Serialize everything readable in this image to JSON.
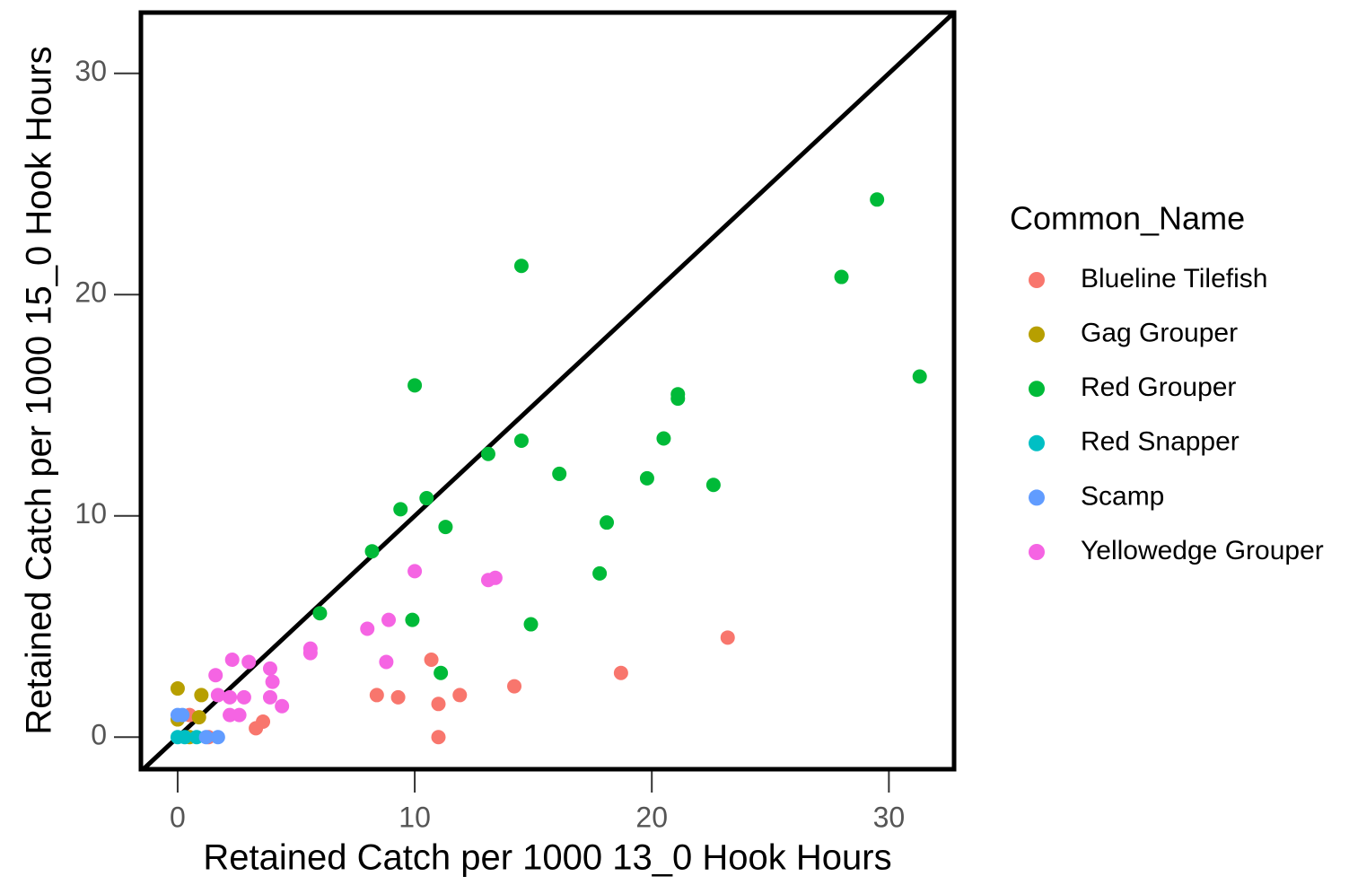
{
  "chart_data": {
    "type": "scatter",
    "x_label": "Retained Catch per 1000 13_0 Hook Hours",
    "y_label": "Retained Catch per 1000 15_0 Hook Hours",
    "legend_title": "Common_Name",
    "legend_position": "right",
    "identity_line": true,
    "xlim": [
      -1.55,
      32.75
    ],
    "ylim": [
      -1.45,
      32.75
    ],
    "xticks": [
      0,
      10,
      20,
      30
    ],
    "yticks": [
      0,
      10,
      20,
      30
    ],
    "series": [
      {
        "name": "Blueline Tilefish",
        "color": "#F8766D",
        "x": [
          23.2,
          18.7,
          10.7,
          14.2,
          11.9,
          8.4,
          9.3,
          11.0,
          3.6,
          3.3,
          11.0,
          0.5,
          1.3
        ],
        "y": [
          4.5,
          2.9,
          3.5,
          2.3,
          1.9,
          1.9,
          1.8,
          1.5,
          0.7,
          0.4,
          0.0,
          1.0,
          0.0
        ]
      },
      {
        "name": "Gag Grouper",
        "color": "#B79F00",
        "x": [
          0.0,
          1.0,
          0.0,
          0.9,
          0.5
        ],
        "y": [
          2.2,
          1.9,
          0.8,
          0.9,
          0.0
        ]
      },
      {
        "name": "Red Grouper",
        "color": "#00BA38",
        "x": [
          29.5,
          14.5,
          28.0,
          31.3,
          10.0,
          21.1,
          21.1,
          20.5,
          14.5,
          13.1,
          16.1,
          19.8,
          22.6,
          10.5,
          9.4,
          11.3,
          18.1,
          8.2,
          17.8,
          6.0,
          9.9,
          14.9,
          11.1
        ],
        "y": [
          24.3,
          21.3,
          20.8,
          16.3,
          15.9,
          15.5,
          15.3,
          13.5,
          13.4,
          12.8,
          11.9,
          11.7,
          11.4,
          10.8,
          10.3,
          9.5,
          9.7,
          8.4,
          7.4,
          5.6,
          5.3,
          5.1,
          2.9
        ]
      },
      {
        "name": "Red Snapper",
        "color": "#00BFC4",
        "x": [
          0.0,
          0.8,
          0.3
        ],
        "y": [
          0.0,
          0.0,
          0.0
        ]
      },
      {
        "name": "Scamp",
        "color": "#619CFF",
        "x": [
          0.0,
          1.7,
          1.2,
          0.2
        ],
        "y": [
          1.0,
          0.0,
          0.0,
          1.0
        ]
      },
      {
        "name": "Yellowedge Grouper",
        "color": "#F564E3",
        "x": [
          10.0,
          13.1,
          13.4,
          8.9,
          8.0,
          5.6,
          5.6,
          8.8,
          2.3,
          3.0,
          3.9,
          4.0,
          1.6,
          3.9,
          4.4,
          2.8,
          2.2,
          1.7,
          2.2,
          2.6
        ],
        "y": [
          7.5,
          7.1,
          7.2,
          5.3,
          4.9,
          4.0,
          3.8,
          3.4,
          3.5,
          3.4,
          3.1,
          2.5,
          2.8,
          1.8,
          1.4,
          1.8,
          1.8,
          1.9,
          1.0,
          1.0
        ]
      }
    ]
  }
}
